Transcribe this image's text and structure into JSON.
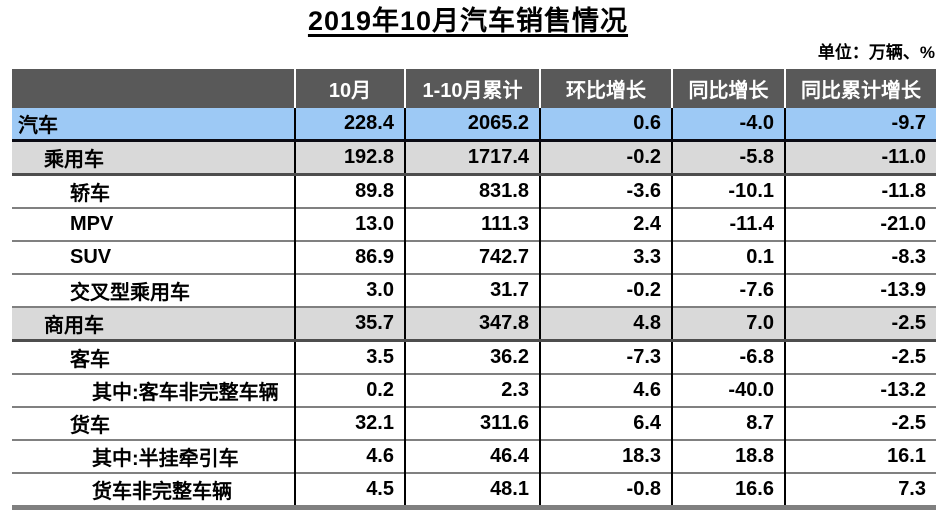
{
  "title": "2019年10月汽车销售情况",
  "unit_note": "单位：万辆、%",
  "colors": {
    "header_bg": "#595959",
    "header_text": "#ffffff",
    "total_row_bg": "#9DC9F5",
    "subtotal_row_bg": "#D9D9D9",
    "row_divider": "#808080",
    "cell_border": "#000000",
    "bottom_bar": "#808080"
  },
  "chart_data": {
    "type": "table",
    "title": "2019年10月汽车销售情况",
    "unit": "万辆、%",
    "columns": [
      "",
      "10月",
      "1-10月累计",
      "环比增长",
      "同比增长",
      "同比累计增长"
    ],
    "rows": [
      {
        "label": "汽车",
        "indent": 0,
        "style": "highlight",
        "values": [
          "228.4",
          "2065.2",
          "0.6",
          "-4.0",
          "-9.7"
        ]
      },
      {
        "label": "乘用车",
        "indent": 1,
        "style": "subtotal",
        "values": [
          "192.8",
          "1717.4",
          "-0.2",
          "-5.8",
          "-11.0"
        ]
      },
      {
        "label": "轿车",
        "indent": 2,
        "style": "plain",
        "values": [
          "89.8",
          "831.8",
          "-3.6",
          "-10.1",
          "-11.8"
        ]
      },
      {
        "label": "MPV",
        "indent": 2,
        "style": "plain",
        "values": [
          "13.0",
          "111.3",
          "2.4",
          "-11.4",
          "-21.0"
        ]
      },
      {
        "label": "SUV",
        "indent": 2,
        "style": "plain",
        "values": [
          "86.9",
          "742.7",
          "3.3",
          "0.1",
          "-8.3"
        ]
      },
      {
        "label": "交叉型乘用车",
        "indent": 2,
        "style": "plain",
        "values": [
          "3.0",
          "31.7",
          "-0.2",
          "-7.6",
          "-13.9"
        ]
      },
      {
        "label": "商用车",
        "indent": 1,
        "style": "subtotal",
        "values": [
          "35.7",
          "347.8",
          "4.8",
          "7.0",
          "-2.5"
        ]
      },
      {
        "label": "客车",
        "indent": 2,
        "style": "plain",
        "values": [
          "3.5",
          "36.2",
          "-7.3",
          "-6.8",
          "-2.5"
        ]
      },
      {
        "label": "其中:客车非完整车辆",
        "indent": 3,
        "style": "plain",
        "values": [
          "0.2",
          "2.3",
          "4.6",
          "-40.0",
          "-13.2"
        ]
      },
      {
        "label": "货车",
        "indent": 2,
        "style": "plain",
        "values": [
          "32.1",
          "311.6",
          "6.4",
          "8.7",
          "-2.5"
        ]
      },
      {
        "label": "其中:半挂牵引车",
        "indent": 3,
        "style": "plain",
        "values": [
          "4.6",
          "46.4",
          "18.3",
          "18.8",
          "16.1"
        ]
      },
      {
        "label": "货车非完整车辆",
        "indent": 3,
        "style": "plain",
        "values": [
          "4.5",
          "48.1",
          "-0.8",
          "16.6",
          "7.3"
        ]
      }
    ]
  }
}
